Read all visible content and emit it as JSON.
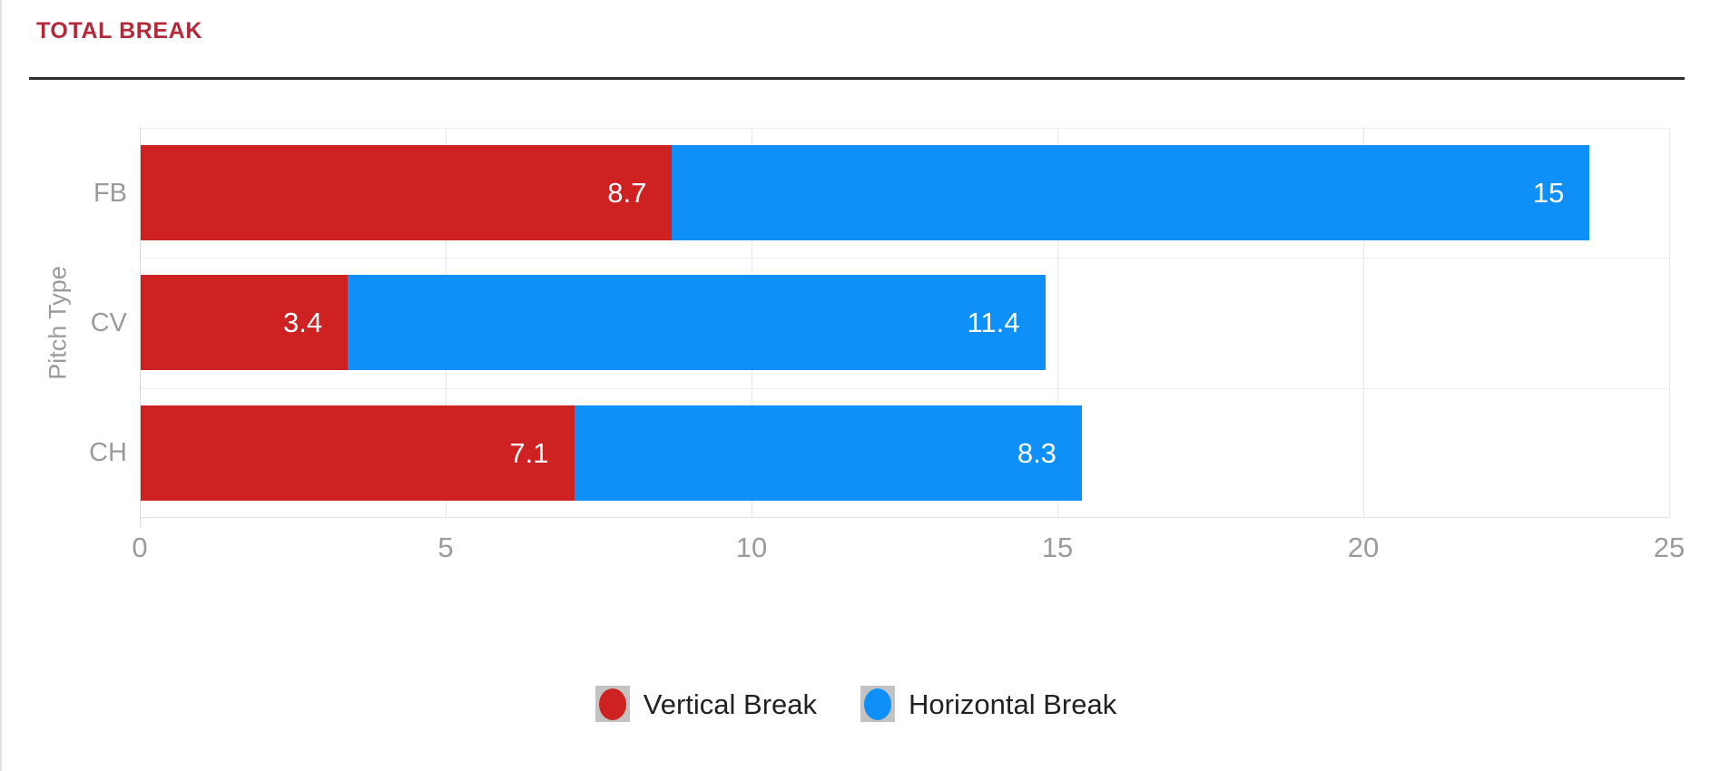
{
  "header": {
    "title": "TOTAL BREAK"
  },
  "colors": {
    "title": "#b3293a",
    "vertical_break": "#cd2122",
    "horizontal_break": "#0e90f8",
    "axis_text": "#9b9b9b",
    "legend_text": "#212121",
    "legend_swatch_bg": "#c3c3c3",
    "rule": "#2e2e2e"
  },
  "chart_data": {
    "type": "bar",
    "orientation": "horizontal",
    "stacked": true,
    "title": "TOTAL BREAK",
    "categories": [
      "FB",
      "CV",
      "CH"
    ],
    "series": [
      {
        "name": "Vertical Break",
        "color": "#cd2122",
        "values": [
          8.7,
          3.4,
          7.1
        ]
      },
      {
        "name": "Horizontal Break",
        "color": "#0e90f8",
        "values": [
          15,
          11.4,
          8.3
        ]
      }
    ],
    "xlabel": "",
    "ylabel": "Pitch Type",
    "xlim": [
      0,
      25
    ],
    "x_ticks": [
      0,
      5,
      10,
      15,
      20,
      25
    ],
    "grid": true,
    "value_labels": "inside-end",
    "legend_position": "bottom"
  }
}
